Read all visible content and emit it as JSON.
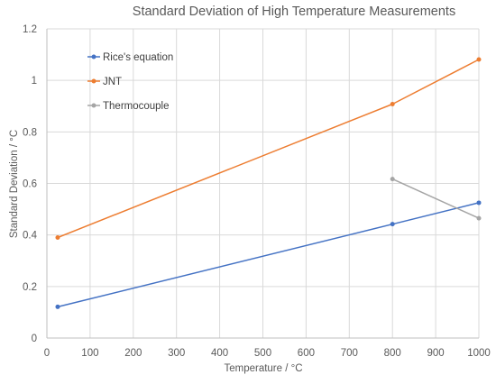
{
  "chart_data": {
    "type": "line",
    "title": "Standard Deviation of High Temperature Measurements",
    "xlabel": "Temperature / °C",
    "ylabel": "Standard Deviation / °C",
    "xlim": [
      0,
      1000
    ],
    "ylim": [
      0,
      1.2
    ],
    "xticks": [
      0,
      100,
      200,
      300,
      400,
      500,
      600,
      700,
      800,
      900,
      1000
    ],
    "yticks": [
      0,
      0.2,
      0.4,
      0.6,
      0.8,
      1,
      1.2
    ],
    "grid": "vertical and horizontal",
    "legend_position": "top-left",
    "series": [
      {
        "name": "Rice's equation",
        "color": "#4472c4",
        "x": [
          25,
          800,
          1000
        ],
        "y": [
          0.121,
          0.442,
          0.525
        ]
      },
      {
        "name": "JNT",
        "color": "#ed7d31",
        "x": [
          25,
          800,
          1000
        ],
        "y": [
          0.39,
          0.908,
          1.081
        ]
      },
      {
        "name": "Thermocouple",
        "color": "#a5a5a5",
        "x": [
          800,
          1000
        ],
        "y": [
          0.617,
          0.465
        ]
      }
    ]
  }
}
